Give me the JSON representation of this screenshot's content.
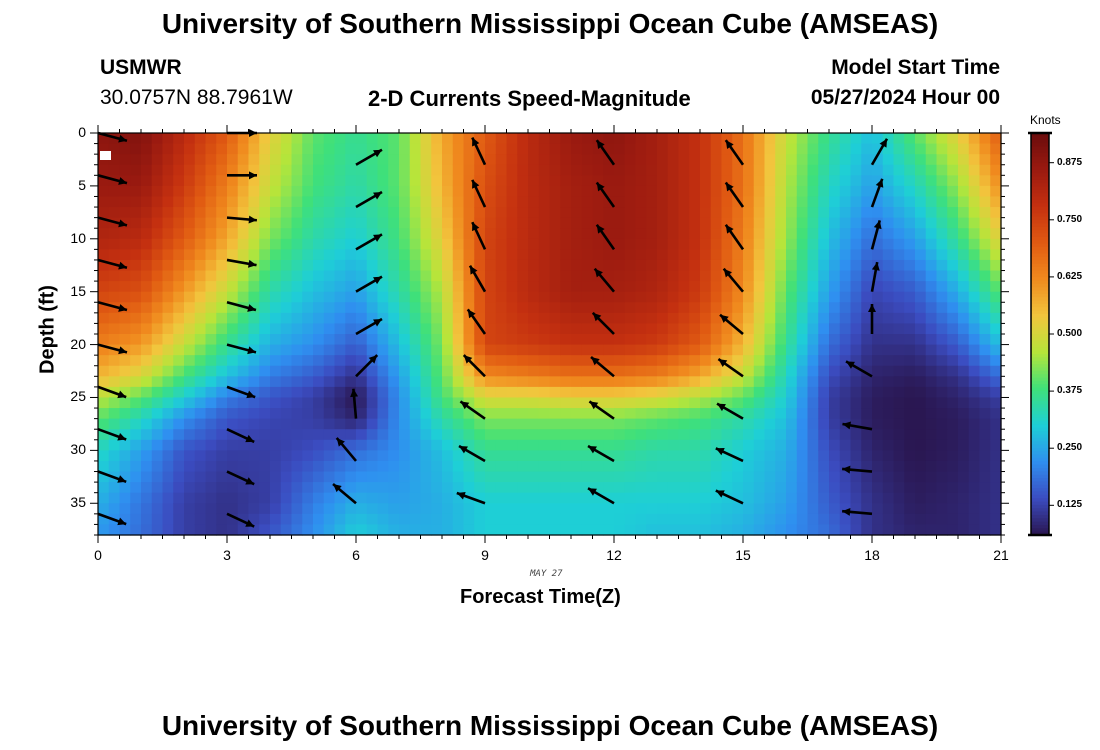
{
  "header": {
    "title": "University of Southern Mississippi Ocean Cube (AMSEAS)",
    "station": "USMWR",
    "coordinates": "30.0757N  88.7961W",
    "plot_title": "2-D Currents Speed-Magnitude",
    "model_start_label": "Model Start Time",
    "model_start_value": "05/27/2024 Hour 00"
  },
  "footer": {
    "title": "University of Southern Mississippi Ocean Cube (AMSEAS)"
  },
  "colors": {
    "frame": "#000000",
    "arrow": "#000000"
  },
  "chart_data": {
    "type": "heatmap",
    "title": "2-D Currents Speed-Magnitude",
    "xlabel": "Forecast Time(Z)",
    "ylabel": "Depth (ft)",
    "date_label": "MAY 27",
    "xlim": [
      0,
      21
    ],
    "ylim": [
      0,
      38
    ],
    "y_inverted": true,
    "x_ticks": [
      0,
      3,
      6,
      9,
      12,
      15,
      18,
      21
    ],
    "x_tick_labels": [
      "0",
      "3",
      "6",
      "9",
      "12",
      "15",
      "18",
      "21"
    ],
    "y_ticks": [
      0,
      5,
      10,
      15,
      20,
      25,
      30,
      35
    ],
    "y_tick_labels": [
      "0",
      "5",
      "10",
      "15",
      "20",
      "25",
      "30",
      "35"
    ],
    "colorbar": {
      "label": "Knots",
      "min": 0.06,
      "max": 0.94,
      "ticks": [
        0.125,
        0.25,
        0.375,
        0.5,
        0.625,
        0.75,
        0.875
      ],
      "tick_labels": [
        "0.125",
        "0.250",
        "0.375",
        "0.500",
        "0.625",
        "0.750",
        "0.875"
      ],
      "colormap": [
        "#2a1650",
        "#3b4cc0",
        "#2f8ff0",
        "#1ecfd6",
        "#3fe07a",
        "#b6e53a",
        "#f2c53d",
        "#f08a1e",
        "#e05a12",
        "#c43010",
        "#9a1a10",
        "#6a0c0c"
      ]
    },
    "speed_profiles": {
      "description": "Speed (knots) at depths [0,5,10,15,20,23,25,27,30,35,38] ft per forecast hour",
      "depths": [
        0,
        5,
        10,
        15,
        20,
        23,
        25,
        27,
        30,
        35,
        38
      ],
      "hours": [
        0,
        1,
        2,
        3,
        4,
        5,
        6,
        7,
        8,
        9,
        10,
        11,
        12,
        13,
        14,
        15,
        16,
        17,
        18,
        19,
        20,
        21
      ],
      "values": [
        [
          0.88,
          0.86,
          0.82,
          0.74,
          0.64,
          0.56,
          0.47,
          0.4,
          0.32,
          0.26,
          0.23
        ],
        [
          0.9,
          0.86,
          0.8,
          0.72,
          0.6,
          0.5,
          0.4,
          0.32,
          0.24,
          0.19,
          0.18
        ],
        [
          0.8,
          0.76,
          0.7,
          0.6,
          0.48,
          0.38,
          0.3,
          0.22,
          0.15,
          0.12,
          0.12
        ],
        [
          0.7,
          0.64,
          0.58,
          0.48,
          0.36,
          0.28,
          0.2,
          0.15,
          0.12,
          0.1,
          0.1
        ],
        [
          0.52,
          0.48,
          0.42,
          0.34,
          0.26,
          0.2,
          0.15,
          0.13,
          0.12,
          0.12,
          0.15
        ],
        [
          0.4,
          0.38,
          0.34,
          0.28,
          0.22,
          0.16,
          0.12,
          0.12,
          0.14,
          0.2,
          0.22
        ],
        [
          0.36,
          0.34,
          0.3,
          0.24,
          0.16,
          0.1,
          0.06,
          0.08,
          0.18,
          0.26,
          0.3
        ],
        [
          0.4,
          0.4,
          0.38,
          0.34,
          0.28,
          0.24,
          0.22,
          0.22,
          0.22,
          0.24,
          0.26
        ],
        [
          0.58,
          0.56,
          0.52,
          0.46,
          0.42,
          0.4,
          0.38,
          0.34,
          0.28,
          0.26,
          0.26
        ],
        [
          0.7,
          0.72,
          0.74,
          0.74,
          0.74,
          0.62,
          0.5,
          0.42,
          0.36,
          0.3,
          0.3
        ],
        [
          0.8,
          0.8,
          0.8,
          0.8,
          0.76,
          0.64,
          0.5,
          0.42,
          0.36,
          0.3,
          0.3
        ],
        [
          0.86,
          0.84,
          0.84,
          0.84,
          0.78,
          0.66,
          0.52,
          0.42,
          0.36,
          0.3,
          0.3
        ],
        [
          0.88,
          0.86,
          0.86,
          0.84,
          0.78,
          0.66,
          0.52,
          0.42,
          0.36,
          0.3,
          0.3
        ],
        [
          0.84,
          0.84,
          0.84,
          0.82,
          0.76,
          0.64,
          0.5,
          0.4,
          0.34,
          0.3,
          0.28
        ],
        [
          0.78,
          0.78,
          0.78,
          0.76,
          0.7,
          0.58,
          0.46,
          0.38,
          0.34,
          0.3,
          0.28
        ],
        [
          0.66,
          0.66,
          0.64,
          0.62,
          0.56,
          0.48,
          0.4,
          0.34,
          0.3,
          0.28,
          0.26
        ],
        [
          0.48,
          0.46,
          0.44,
          0.4,
          0.36,
          0.32,
          0.3,
          0.28,
          0.26,
          0.24,
          0.22
        ],
        [
          0.36,
          0.32,
          0.28,
          0.24,
          0.18,
          0.14,
          0.12,
          0.12,
          0.14,
          0.16,
          0.18
        ],
        [
          0.28,
          0.24,
          0.18,
          0.13,
          0.1,
          0.08,
          0.07,
          0.07,
          0.08,
          0.1,
          0.1
        ],
        [
          0.4,
          0.32,
          0.24,
          0.16,
          0.1,
          0.07,
          0.06,
          0.06,
          0.06,
          0.07,
          0.08
        ],
        [
          0.52,
          0.44,
          0.36,
          0.26,
          0.16,
          0.1,
          0.08,
          0.07,
          0.07,
          0.08,
          0.08
        ],
        [
          0.7,
          0.62,
          0.52,
          0.4,
          0.28,
          0.18,
          0.12,
          0.1,
          0.1,
          0.1,
          0.1
        ]
      ]
    },
    "vectors": [
      {
        "t": 0,
        "depths": [
          0,
          4,
          8,
          12,
          16,
          20,
          24,
          28,
          32,
          36
        ],
        "angles_deg": [
          -15,
          -15,
          -15,
          -15,
          -15,
          -15,
          -20,
          -20,
          -20,
          -20
        ]
      },
      {
        "t": 3,
        "depths": [
          0,
          4,
          8,
          12,
          16,
          20,
          24,
          28,
          32,
          36
        ],
        "angles_deg": [
          0,
          0,
          -5,
          -10,
          -15,
          -15,
          -20,
          -25,
          -25,
          -25
        ]
      },
      {
        "t": 6,
        "depths": [
          3,
          7,
          11,
          15,
          19,
          23,
          27,
          31,
          35
        ],
        "angles_deg": [
          30,
          30,
          30,
          30,
          30,
          45,
          95,
          130,
          140
        ]
      },
      {
        "t": 9,
        "depths": [
          3,
          7,
          11,
          15,
          19,
          23,
          27,
          31,
          35
        ],
        "angles_deg": [
          115,
          115,
          115,
          120,
          125,
          135,
          145,
          150,
          160
        ]
      },
      {
        "t": 12,
        "depths": [
          3,
          7,
          11,
          15,
          19,
          23,
          27,
          31,
          35
        ],
        "angles_deg": [
          125,
          125,
          125,
          130,
          135,
          140,
          145,
          150,
          150
        ]
      },
      {
        "t": 15,
        "depths": [
          3,
          7,
          11,
          15,
          19,
          23,
          27,
          31,
          35
        ],
        "angles_deg": [
          125,
          125,
          125,
          130,
          140,
          145,
          150,
          155,
          155
        ]
      },
      {
        "t": 18,
        "depths": [
          3,
          7,
          11,
          15,
          19,
          23,
          28,
          32,
          36
        ],
        "angles_deg": [
          60,
          70,
          75,
          80,
          90,
          150,
          170,
          175,
          175
        ]
      }
    ]
  }
}
